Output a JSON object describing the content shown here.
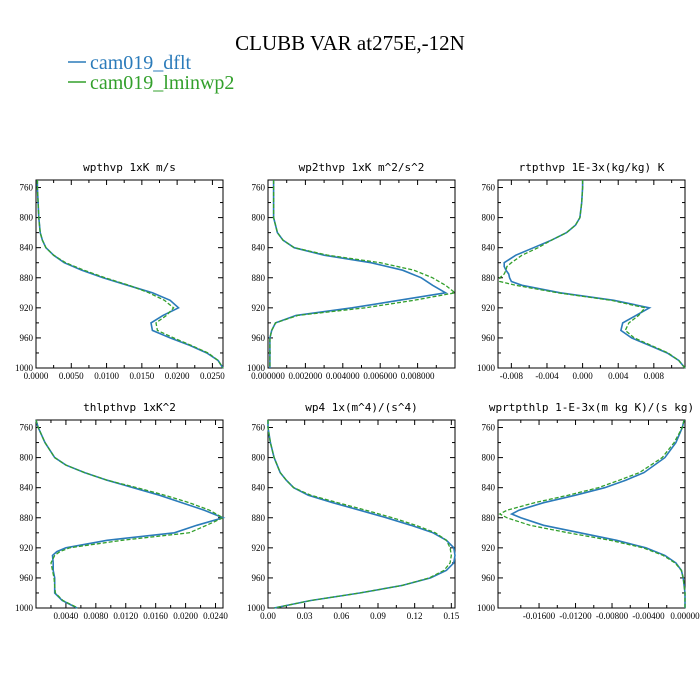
{
  "title": "CLUBB VAR at275E,-12N",
  "colors": {
    "series1": "#2b7bba",
    "series2": "#33a02c"
  },
  "legend": [
    {
      "label": "cam019_dflt",
      "color": "#2b7bba",
      "dash": "solid"
    },
    {
      "label": "cam019_lminwp2",
      "color": "#33a02c",
      "dash": "dashed"
    }
  ],
  "chart_data": [
    {
      "type": "line",
      "title": "wpthvp  1xK m/s",
      "xlim": [
        0,
        0.0265
      ],
      "ylim": [
        1000,
        750
      ],
      "xticks": [
        "0.0000",
        "0.0050",
        "0.0100",
        "0.0150",
        "0.0200",
        "0.0250"
      ],
      "xtick_values": [
        0,
        0.005,
        0.01,
        0.015,
        0.02,
        0.025
      ],
      "yticks": [
        "760",
        "800",
        "840",
        "880",
        "920",
        "960",
        "1000"
      ],
      "ytick_values": [
        760,
        800,
        840,
        880,
        920,
        960,
        1000
      ],
      "y": [
        750,
        760,
        780,
        800,
        820,
        830,
        840,
        850,
        860,
        870,
        880,
        890,
        900,
        910,
        920,
        930,
        940,
        950,
        960,
        970,
        980,
        990,
        1000
      ],
      "series": [
        {
          "name": "cam019_dflt",
          "values": [
            0.0002,
            0.0002,
            0.0003,
            0.0004,
            0.0006,
            0.0009,
            0.0014,
            0.0025,
            0.004,
            0.0065,
            0.0095,
            0.013,
            0.0165,
            0.019,
            0.0202,
            0.018,
            0.0163,
            0.0165,
            0.019,
            0.0218,
            0.0242,
            0.0258,
            0.0265
          ]
        },
        {
          "name": "cam019_lminwp2",
          "values": [
            0.0002,
            0.0002,
            0.0003,
            0.0004,
            0.0006,
            0.0009,
            0.0014,
            0.0025,
            0.0042,
            0.0068,
            0.0098,
            0.0132,
            0.016,
            0.0182,
            0.0195,
            0.0185,
            0.017,
            0.0172,
            0.0195,
            0.022,
            0.0244,
            0.0258,
            0.0265
          ]
        }
      ]
    },
    {
      "type": "line",
      "title": "wp2thvp  1xK m^2/s^2",
      "xlim": [
        0,
        0.01
      ],
      "ylim": [
        1000,
        750
      ],
      "xticks": [
        "0.000000",
        "0.002000",
        "0.004000",
        "0.006000",
        "0.008000"
      ],
      "xtick_values": [
        0,
        0.002,
        0.004,
        0.006,
        0.008
      ],
      "yticks": [
        "760",
        "800",
        "840",
        "880",
        "920",
        "960",
        "1000"
      ],
      "ytick_values": [
        760,
        800,
        840,
        880,
        920,
        960,
        1000
      ],
      "y": [
        750,
        760,
        780,
        800,
        820,
        830,
        840,
        850,
        860,
        870,
        880,
        890,
        900,
        910,
        920,
        930,
        940,
        950,
        960,
        970,
        980,
        990,
        1000
      ],
      "series": [
        {
          "name": "cam019_dflt",
          "values": [
            0.0003,
            0.0003,
            0.0003,
            0.0003,
            0.0005,
            0.0008,
            0.0014,
            0.003,
            0.0055,
            0.0072,
            0.0082,
            0.0088,
            0.0095,
            0.007,
            0.0045,
            0.0015,
            0.0004,
            0.0002,
            0.0001,
            0.0001,
            0.0001,
            0.0001,
            0.0001
          ]
        },
        {
          "name": "cam019_lminwp2",
          "values": [
            0.0003,
            0.0003,
            0.0003,
            0.0003,
            0.0005,
            0.0008,
            0.0014,
            0.0032,
            0.006,
            0.0078,
            0.0088,
            0.0095,
            0.01,
            0.0078,
            0.0052,
            0.0016,
            0.0004,
            0.0002,
            0.0001,
            0.0001,
            0.0001,
            0.0001,
            0.0001
          ]
        }
      ]
    },
    {
      "type": "line",
      "title": "rtpthvp  1E-3x(kg/kg) K",
      "xlim": [
        -0.0095,
        0.0115
      ],
      "ylim": [
        1000,
        750
      ],
      "xticks": [
        "-0.008",
        "-0.004",
        "0.000",
        "0.004",
        "0.008"
      ],
      "xtick_values": [
        -0.008,
        -0.004,
        0,
        0.004,
        0.008
      ],
      "yticks": [
        "760",
        "800",
        "840",
        "880",
        "920",
        "960",
        "1000"
      ],
      "ytick_values": [
        760,
        800,
        840,
        880,
        920,
        960,
        1000
      ],
      "y": [
        750,
        760,
        780,
        800,
        810,
        820,
        830,
        840,
        850,
        860,
        865,
        870,
        875,
        880,
        885,
        890,
        900,
        910,
        920,
        930,
        940,
        950,
        960,
        970,
        980,
        990,
        1000
      ],
      "series": [
        {
          "name": "cam019_dflt",
          "values": [
            0.0,
            0.0,
            -0.0001,
            -0.0003,
            -0.0008,
            -0.0018,
            -0.0035,
            -0.0055,
            -0.0075,
            -0.0088,
            -0.0088,
            -0.0086,
            -0.0083,
            -0.0082,
            -0.008,
            -0.0068,
            -0.0025,
            0.0035,
            0.0075,
            0.006,
            0.0045,
            0.0043,
            0.0055,
            0.0075,
            0.0095,
            0.0108,
            0.0115
          ]
        },
        {
          "name": "cam019_lminwp2",
          "values": [
            0.0,
            0.0,
            -0.0001,
            -0.0003,
            -0.0008,
            -0.0018,
            -0.0035,
            -0.005,
            -0.0068,
            -0.008,
            -0.0085,
            -0.0086,
            -0.0088,
            -0.0093,
            -0.0093,
            -0.0075,
            -0.0028,
            0.0032,
            0.007,
            0.0063,
            0.0052,
            0.0048,
            0.0058,
            0.0077,
            0.0096,
            0.0108,
            0.0115
          ]
        }
      ]
    },
    {
      "type": "line",
      "title": "thlpthvp  1xK^2",
      "xlim": [
        0,
        0.025
      ],
      "ylim": [
        1000,
        750
      ],
      "xticks": [
        "0.0040",
        "0.0080",
        "0.0120",
        "0.0160",
        "0.0200",
        "0.0240"
      ],
      "xtick_values": [
        0.004,
        0.008,
        0.012,
        0.016,
        0.02,
        0.024
      ],
      "yticks": [
        "760",
        "800",
        "840",
        "880",
        "920",
        "960",
        "1000"
      ],
      "ytick_values": [
        760,
        800,
        840,
        880,
        920,
        960,
        1000
      ],
      "y": [
        750,
        760,
        780,
        800,
        810,
        820,
        830,
        840,
        850,
        860,
        870,
        880,
        890,
        900,
        910,
        920,
        925,
        930,
        940,
        950,
        960,
        970,
        980,
        990,
        1000
      ],
      "series": [
        {
          "name": "cam019_dflt",
          "values": [
            0.0,
            0.0003,
            0.0012,
            0.0025,
            0.004,
            0.0065,
            0.0095,
            0.013,
            0.0165,
            0.0195,
            0.0225,
            0.025,
            0.0215,
            0.0185,
            0.0095,
            0.004,
            0.0028,
            0.0022,
            0.0023,
            0.0023,
            0.0025,
            0.0025,
            0.0025,
            0.0035,
            0.0055
          ]
        },
        {
          "name": "cam019_lminwp2",
          "values": [
            0.0,
            0.0003,
            0.0012,
            0.0025,
            0.004,
            0.0065,
            0.0095,
            0.0135,
            0.0172,
            0.0205,
            0.0232,
            0.025,
            0.0228,
            0.0205,
            0.0115,
            0.0045,
            0.0032,
            0.0025,
            0.002,
            0.0022,
            0.0024,
            0.0025,
            0.0026,
            0.0036,
            0.0056
          ]
        }
      ]
    },
    {
      "type": "line",
      "title": "wp4  1x(m^4)/(s^4)",
      "xlim": [
        0,
        0.153
      ],
      "ylim": [
        1000,
        750
      ],
      "xticks": [
        "0.00",
        "0.03",
        "0.06",
        "0.09",
        "0.12",
        "0.15"
      ],
      "xtick_values": [
        0,
        0.03,
        0.06,
        0.09,
        0.12,
        0.15
      ],
      "yticks": [
        "760",
        "800",
        "840",
        "880",
        "920",
        "960",
        "1000"
      ],
      "ytick_values": [
        760,
        800,
        840,
        880,
        920,
        960,
        1000
      ],
      "y": [
        750,
        760,
        780,
        800,
        820,
        830,
        840,
        850,
        860,
        870,
        880,
        890,
        900,
        910,
        920,
        930,
        940,
        950,
        960,
        970,
        980,
        990,
        1000
      ],
      "series": [
        {
          "name": "cam019_dflt",
          "values": [
            0.0,
            0.0,
            0.002,
            0.005,
            0.01,
            0.015,
            0.021,
            0.033,
            0.053,
            0.075,
            0.097,
            0.117,
            0.135,
            0.146,
            0.152,
            0.153,
            0.152,
            0.146,
            0.133,
            0.11,
            0.075,
            0.035,
            0.005
          ]
        },
        {
          "name": "cam019_lminwp2",
          "values": [
            0.0,
            0.0,
            0.002,
            0.005,
            0.01,
            0.015,
            0.021,
            0.035,
            0.057,
            0.08,
            0.102,
            0.121,
            0.137,
            0.146,
            0.149,
            0.15,
            0.149,
            0.144,
            0.132,
            0.11,
            0.075,
            0.035,
            0.005
          ]
        }
      ]
    },
    {
      "type": "line",
      "title": "wprtpthlp  1-E-3x(m kg K)/(s kg)",
      "xlim": [
        -0.0205,
        0.0
      ],
      "ylim": [
        1000,
        750
      ],
      "xticks": [
        "-0.01600",
        "-0.01200",
        "-0.00800",
        "-0.00400",
        "0.00000"
      ],
      "xtick_values": [
        -0.016,
        -0.012,
        -0.008,
        -0.004,
        0
      ],
      "yticks": [
        "760",
        "800",
        "840",
        "880",
        "920",
        "960",
        "1000"
      ],
      "ytick_values": [
        760,
        800,
        840,
        880,
        920,
        960,
        1000
      ],
      "y": [
        750,
        760,
        780,
        800,
        820,
        830,
        840,
        850,
        860,
        870,
        875,
        880,
        890,
        900,
        910,
        920,
        930,
        940,
        950,
        960,
        970,
        980,
        990,
        1000
      ],
      "series": [
        {
          "name": "cam019_dflt",
          "values": [
            -0.0001,
            -0.0003,
            -0.001,
            -0.0022,
            -0.0045,
            -0.0065,
            -0.0088,
            -0.012,
            -0.0155,
            -0.0182,
            -0.019,
            -0.018,
            -0.0155,
            -0.0115,
            -0.0075,
            -0.0043,
            -0.0022,
            -0.001,
            -0.0004,
            -0.0002,
            -0.0001,
            0.0,
            0.0,
            0.0
          ]
        },
        {
          "name": "cam019_lminwp2",
          "values": [
            -0.0001,
            -0.0003,
            -0.0012,
            -0.0025,
            -0.005,
            -0.0072,
            -0.0095,
            -0.0128,
            -0.0165,
            -0.0195,
            -0.0203,
            -0.0195,
            -0.017,
            -0.0128,
            -0.0082,
            -0.0046,
            -0.0024,
            -0.0011,
            -0.0004,
            -0.0002,
            -0.0001,
            0.0,
            0.0,
            0.0
          ]
        }
      ]
    }
  ]
}
